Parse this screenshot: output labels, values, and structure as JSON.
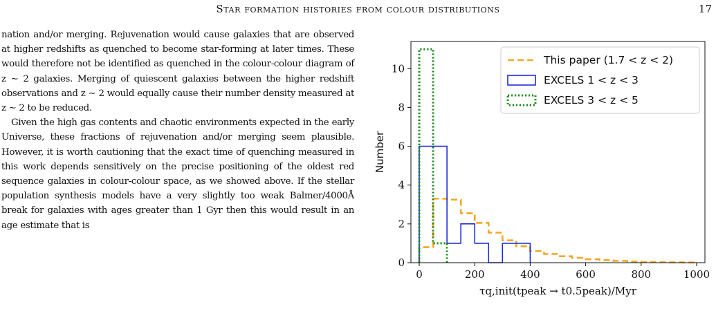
{
  "header": {
    "running_title": "Star formation histories from colour distributions",
    "page_number": "17"
  },
  "body": {
    "paragraph_1": "nation and/or merging. Rejuvenation would cause galaxies that are observed at higher redshifts as quenched to become star-forming at later times. These would therefore not be identified as quenched in the colour-colour diagram of z ∼ 2 galaxies. Merging of quiescent galaxies between the higher redshift observations and z ∼ 2 would equally cause their number density measured at z ∼ 2 to be reduced.",
    "paragraph_2": "Given the high gas contents and chaotic environments expected in the early Universe, these fractions of rejuvenation and/or merging seem plausible. However, it is worth cautioning that the exact time of quenching measured in this work depends sensitively on the precise positioning of the oldest red sequence galaxies in colour-colour space, as we showed above. If the stellar population synthesis models have a very slightly too weak Balmer/4000Å break for galaxies with ages greater than 1 Gyr then this would result in an age estimate that is"
  },
  "figure": {
    "chart_data": {
      "type": "histogram",
      "title": "",
      "xlabel": "τq,init(tpeak → t0.5peak)/Myr",
      "ylabel": "Number",
      "xlim": [
        -30,
        1030
      ],
      "ylim": [
        0,
        11.4
      ],
      "x_ticks": [
        "0",
        "200",
        "400",
        "600",
        "800",
        "1000"
      ],
      "y_ticks": [
        "0",
        "2",
        "4",
        "6",
        "8",
        "10"
      ],
      "legend_position": "top-right",
      "series": [
        {
          "name": "This paper (1.7 < z < 2)",
          "style": "dashed",
          "color": "#f5a623",
          "bin_edges": [
            0,
            50,
            100,
            150,
            200,
            250,
            300,
            350,
            400,
            450,
            500,
            550,
            600,
            650,
            700,
            750,
            800,
            850,
            900,
            950,
            1000
          ],
          "values": [
            0.8,
            3.3,
            3.25,
            2.55,
            2.05,
            1.55,
            1.15,
            0.85,
            0.6,
            0.45,
            0.33,
            0.25,
            0.18,
            0.13,
            0.09,
            0.06,
            0.04,
            0.03,
            0.02,
            0.01
          ]
        },
        {
          "name": "EXCELS 1 < z < 3",
          "style": "solid",
          "color": "#1f2fd6",
          "bin_edges": [
            0,
            100,
            150,
            200,
            250,
            300,
            400
          ],
          "values": [
            6,
            1,
            2,
            1,
            0,
            1
          ]
        },
        {
          "name": "EXCELS 3 < z < 5",
          "style": "dotted",
          "color": "#1f8f1f",
          "bin_edges": [
            0,
            50,
            100
          ],
          "values": [
            11,
            1
          ]
        }
      ]
    }
  },
  "colors": {
    "orange": "#f5a623",
    "blue": "#1f2fd6",
    "green": "#1f8f1f"
  }
}
